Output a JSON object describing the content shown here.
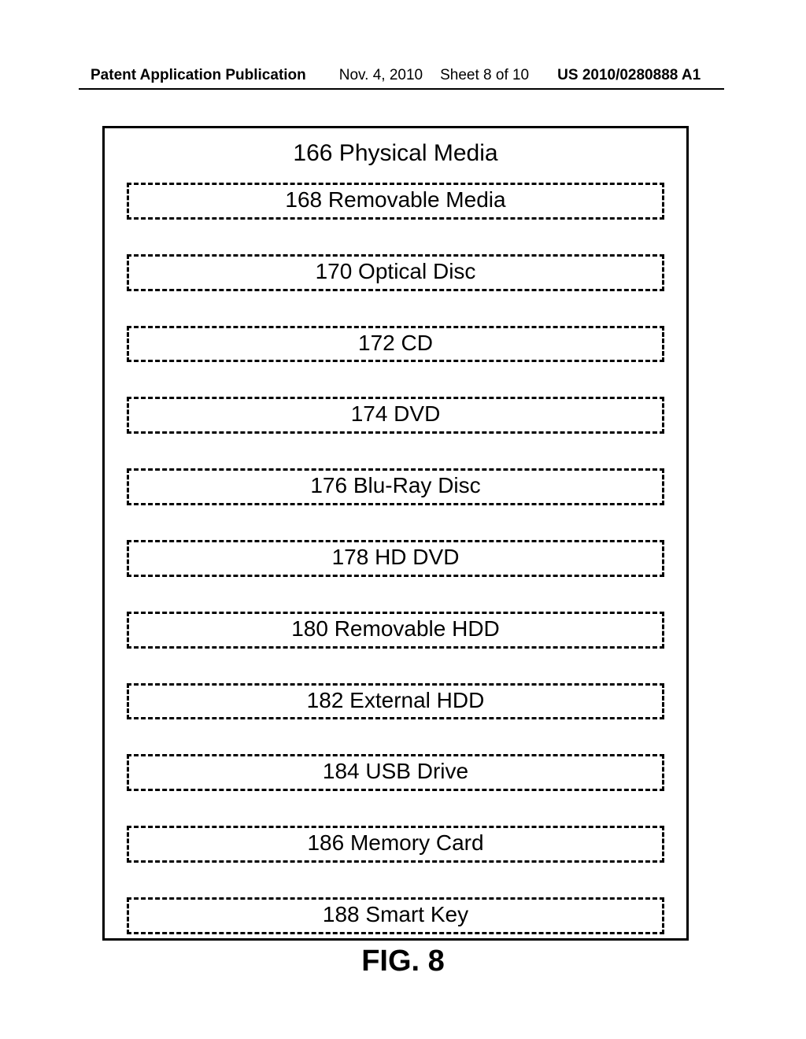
{
  "header": {
    "label": "Patent Application Publication",
    "date": "Nov. 4, 2010",
    "sheet": "Sheet 8 of 10",
    "pubnum": "US 2010/0280888 A1"
  },
  "diagram": {
    "outer_border_color": "#000000",
    "background_color": "#ffffff",
    "title": "166  Physical Media",
    "title_fontsize": 30,
    "item_fontsize": 28,
    "item_border_style": "dashed",
    "item_border_color": "#000000",
    "items": [
      {
        "label": "168  Removable Media"
      },
      {
        "label": "170  Optical Disc"
      },
      {
        "label": "172  CD"
      },
      {
        "label": "174  DVD"
      },
      {
        "label": "176  Blu-Ray Disc"
      },
      {
        "label": "178  HD DVD"
      },
      {
        "label": "180  Removable HDD"
      },
      {
        "label": "182  External HDD"
      },
      {
        "label": "184  USB Drive"
      },
      {
        "label": "186 Memory Card"
      },
      {
        "label": "188 Smart Key"
      }
    ]
  },
  "figure_label": "FIG. 8"
}
